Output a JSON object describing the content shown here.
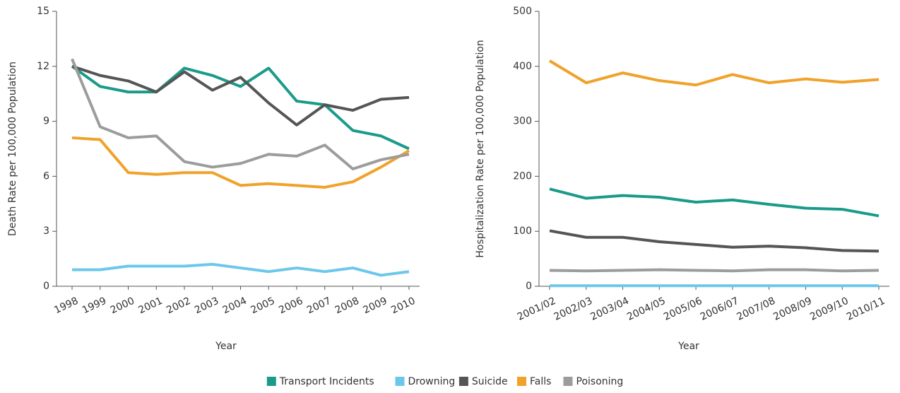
{
  "chart_data": [
    {
      "type": "line",
      "ylabel": "Death Rate per 100,000 Population",
      "xlabel": "Year",
      "categories": [
        "1998",
        "1999",
        "2000",
        "2001",
        "2002",
        "2003",
        "2004",
        "2005",
        "2006",
        "2007",
        "2008",
        "2009",
        "2010"
      ],
      "ylim": [
        0,
        15
      ],
      "yticks": [
        0,
        3,
        6,
        9,
        12,
        15
      ],
      "series": [
        {
          "name": "Transport Incidents",
          "color": "#1a9b8a",
          "values": [
            12.0,
            10.9,
            10.6,
            10.6,
            11.9,
            11.5,
            10.9,
            11.9,
            10.1,
            9.9,
            8.5,
            8.2,
            7.5
          ]
        },
        {
          "name": "Drowning",
          "color": "#6cc8ea",
          "values": [
            0.9,
            0.9,
            1.1,
            1.1,
            1.1,
            1.2,
            1.0,
            0.8,
            1.0,
            0.8,
            1.0,
            0.6,
            0.8
          ]
        },
        {
          "name": "Suicide",
          "color": "#555555",
          "values": [
            12.0,
            11.5,
            11.2,
            10.6,
            11.7,
            10.7,
            11.4,
            10.0,
            8.8,
            9.9,
            9.6,
            10.2,
            10.3
          ]
        },
        {
          "name": "Falls",
          "color": "#f0a22a",
          "values": [
            8.1,
            8.0,
            6.2,
            6.1,
            6.2,
            6.2,
            5.5,
            5.6,
            5.5,
            5.4,
            5.7,
            6.5,
            7.4
          ]
        },
        {
          "name": "Poisoning",
          "color": "#9c9c9c",
          "values": [
            12.4,
            8.7,
            8.1,
            8.2,
            6.8,
            6.5,
            6.7,
            7.2,
            7.1,
            7.7,
            6.4,
            6.9,
            7.2
          ]
        }
      ]
    },
    {
      "type": "line",
      "ylabel": "Hospitalization Rate per 100,000 Population",
      "xlabel": "Year",
      "categories": [
        "2001/02",
        "2002/03",
        "2003/04",
        "2004/05",
        "2005/06",
        "2006/07",
        "2007/08",
        "2008/09",
        "2009/10",
        "2010/11"
      ],
      "ylim": [
        0,
        500
      ],
      "yticks": [
        0,
        100,
        200,
        300,
        400,
        500
      ],
      "series": [
        {
          "color": "#1a9b8a",
          "values": [
            177,
            160,
            165,
            162,
            153,
            157,
            149,
            142,
            140,
            128
          ]
        },
        {
          "color": "#6cc8ea",
          "values": [
            1,
            1,
            1,
            1,
            1,
            1,
            1,
            1,
            1,
            1
          ]
        },
        {
          "color": "#555555",
          "values": [
            101,
            89,
            89,
            81,
            76,
            71,
            73,
            70,
            65,
            64
          ]
        },
        {
          "color": "#f0a22a",
          "values": [
            410,
            370,
            388,
            374,
            366,
            385,
            370,
            377,
            371,
            376
          ]
        },
        {
          "color": "#9c9c9c",
          "values": [
            29,
            28,
            29,
            30,
            29,
            28,
            30,
            30,
            28,
            29
          ]
        }
      ]
    }
  ]
}
